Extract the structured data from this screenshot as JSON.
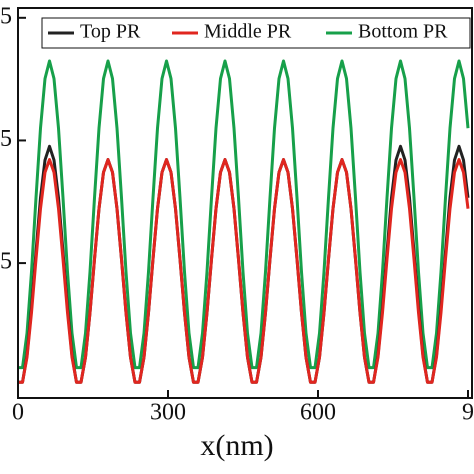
{
  "chart_data": {
    "type": "line",
    "xlabel": "x(nm)",
    "xlim": [
      0,
      908
    ],
    "xticks": [
      0,
      300,
      600,
      {
        "value": 900,
        "label": "9"
      }
    ],
    "ylim": [
      -0.025,
      0.77
    ],
    "yticks": [
      {
        "value": 0.25,
        "label": "5"
      },
      {
        "value": 0.5,
        "label": "5"
      },
      {
        "value": 0.75,
        "label": "5"
      }
    ],
    "legend": "top",
    "x": [
      0,
      9,
      18,
      27,
      36,
      45,
      54,
      63,
      72,
      81,
      90,
      99,
      108,
      117,
      126,
      135,
      144,
      153,
      162,
      171,
      180,
      189,
      198,
      207,
      216,
      225,
      234,
      243,
      252,
      261,
      270,
      279,
      288,
      297,
      306,
      315,
      324,
      333,
      342,
      351,
      360,
      369,
      378,
      387,
      396,
      405,
      414,
      423,
      432,
      441,
      450,
      459,
      468,
      477,
      486,
      495,
      504,
      513,
      522,
      531,
      540,
      549,
      558,
      567,
      576,
      585,
      594,
      603,
      612,
      621,
      630,
      639,
      648,
      657,
      666,
      675,
      684,
      693,
      702,
      711,
      720,
      729,
      738,
      747,
      756,
      765,
      774,
      783,
      792,
      801,
      810,
      819,
      828,
      837,
      846,
      855,
      864,
      873,
      882,
      891,
      900
    ],
    "series": [
      {
        "name": "Top PR",
        "color": "#222222",
        "values": [
          0.007,
          0.007,
          0.062,
          0.158,
          0.273,
          0.383,
          0.46,
          0.488,
          0.46,
          0.383,
          0.273,
          0.158,
          0.062,
          0.007,
          0.007,
          0.058,
          0.149,
          0.258,
          0.361,
          0.435,
          0.461,
          0.435,
          0.361,
          0.258,
          0.149,
          0.058,
          0.007,
          0.007,
          0.058,
          0.149,
          0.258,
          0.361,
          0.435,
          0.461,
          0.435,
          0.361,
          0.258,
          0.149,
          0.058,
          0.007,
          0.007,
          0.058,
          0.149,
          0.258,
          0.361,
          0.435,
          0.461,
          0.435,
          0.361,
          0.258,
          0.149,
          0.058,
          0.007,
          0.007,
          0.058,
          0.149,
          0.258,
          0.361,
          0.435,
          0.461,
          0.435,
          0.361,
          0.258,
          0.149,
          0.058,
          0.007,
          0.007,
          0.058,
          0.149,
          0.258,
          0.361,
          0.435,
          0.461,
          0.435,
          0.361,
          0.258,
          0.149,
          0.058,
          0.007,
          0.007,
          0.062,
          0.158,
          0.273,
          0.383,
          0.46,
          0.488,
          0.46,
          0.383,
          0.273,
          0.158,
          0.062,
          0.007,
          0.007,
          0.062,
          0.158,
          0.273,
          0.383,
          0.46,
          0.488,
          0.46,
          0.383
        ]
      },
      {
        "name": "Middle PR",
        "color": "#e0261f",
        "values": [
          0.007,
          0.007,
          0.058,
          0.149,
          0.258,
          0.361,
          0.435,
          0.461,
          0.435,
          0.361,
          0.258,
          0.149,
          0.058,
          0.007,
          0.007,
          0.058,
          0.149,
          0.258,
          0.361,
          0.435,
          0.461,
          0.435,
          0.361,
          0.258,
          0.149,
          0.058,
          0.007,
          0.007,
          0.058,
          0.149,
          0.258,
          0.361,
          0.435,
          0.461,
          0.435,
          0.361,
          0.258,
          0.149,
          0.058,
          0.007,
          0.007,
          0.058,
          0.149,
          0.258,
          0.361,
          0.435,
          0.461,
          0.435,
          0.361,
          0.258,
          0.149,
          0.058,
          0.007,
          0.007,
          0.058,
          0.149,
          0.258,
          0.361,
          0.435,
          0.461,
          0.435,
          0.361,
          0.258,
          0.149,
          0.058,
          0.007,
          0.007,
          0.058,
          0.149,
          0.258,
          0.361,
          0.435,
          0.461,
          0.435,
          0.361,
          0.258,
          0.149,
          0.058,
          0.007,
          0.007,
          0.058,
          0.149,
          0.258,
          0.361,
          0.435,
          0.461,
          0.435,
          0.361,
          0.258,
          0.149,
          0.058,
          0.007,
          0.007,
          0.058,
          0.149,
          0.258,
          0.361,
          0.435,
          0.461,
          0.435,
          0.361
        ]
      },
      {
        "name": "Bottom PR",
        "color": "#17a04a",
        "values": [
          0.037,
          0.037,
          0.107,
          0.232,
          0.383,
          0.525,
          0.626,
          0.662,
          0.626,
          0.525,
          0.383,
          0.232,
          0.107,
          0.037,
          0.037,
          0.107,
          0.232,
          0.383,
          0.525,
          0.626,
          0.662,
          0.626,
          0.525,
          0.383,
          0.232,
          0.107,
          0.037,
          0.037,
          0.107,
          0.232,
          0.383,
          0.525,
          0.626,
          0.662,
          0.626,
          0.525,
          0.383,
          0.232,
          0.107,
          0.037,
          0.037,
          0.107,
          0.232,
          0.383,
          0.525,
          0.626,
          0.662,
          0.626,
          0.525,
          0.383,
          0.232,
          0.107,
          0.037,
          0.037,
          0.107,
          0.232,
          0.383,
          0.525,
          0.626,
          0.662,
          0.626,
          0.525,
          0.383,
          0.232,
          0.107,
          0.037,
          0.037,
          0.107,
          0.232,
          0.383,
          0.525,
          0.626,
          0.662,
          0.626,
          0.525,
          0.383,
          0.232,
          0.107,
          0.037,
          0.037,
          0.107,
          0.232,
          0.383,
          0.525,
          0.626,
          0.662,
          0.626,
          0.525,
          0.383,
          0.232,
          0.107,
          0.037,
          0.037,
          0.107,
          0.232,
          0.383,
          0.525,
          0.626,
          0.662,
          0.626,
          0.525
        ]
      }
    ]
  }
}
